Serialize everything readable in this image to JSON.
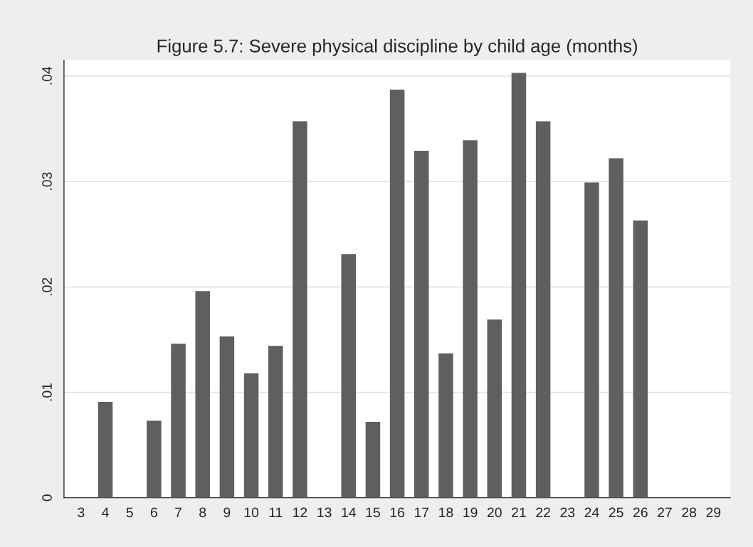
{
  "chart_data": {
    "type": "bar",
    "title": "Figure 5.7: Severe physical discipline by child age (months)",
    "categories": [
      "3",
      "4",
      "5",
      "6",
      "7",
      "8",
      "9",
      "10",
      "11",
      "12",
      "13",
      "14",
      "15",
      "16",
      "17",
      "18",
      "19",
      "20",
      "21",
      "22",
      "23",
      "24",
      "25",
      "26",
      "27",
      "28",
      "29"
    ],
    "values": [
      null,
      0.0091,
      null,
      0.0073,
      0.0146,
      0.0196,
      0.0153,
      0.0118,
      0.0144,
      0.0357,
      null,
      0.0231,
      0.0072,
      0.0387,
      0.0329,
      0.0137,
      0.0339,
      0.0169,
      0.0403,
      0.0357,
      null,
      0.0299,
      0.0322,
      0.0263,
      null,
      null,
      null
    ],
    "color": "#5f5f5f",
    "ylim": [
      0,
      0.0415
    ],
    "yticks": [
      0,
      {
        "value": 0.01,
        "label": ".01"
      },
      {
        "value": 0.02,
        "label": ".02"
      },
      {
        "value": 0.03,
        "label": ".03"
      },
      {
        "value": 0.04,
        "label": ".04"
      }
    ],
    "grid": "y"
  }
}
